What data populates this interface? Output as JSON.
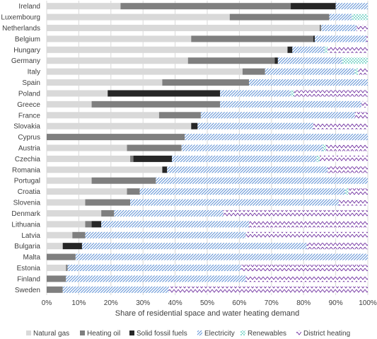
{
  "chart_data": {
    "type": "bar",
    "orientation": "horizontal",
    "stacked": true,
    "xlabel": "Share of residential space and water heating demand",
    "xlim": [
      0,
      100
    ],
    "x_ticks": [
      "0%",
      "10%",
      "20%",
      "30%",
      "40%",
      "50%",
      "60%",
      "70%",
      "80%",
      "90%",
      "100%"
    ],
    "grid": true,
    "legend_position": "bottom",
    "categories": [
      "Ireland",
      "Luxembourg",
      "Netherlands",
      "Belgium",
      "Hungary",
      "Germany",
      "Italy",
      "Spain",
      "Poland",
      "Greece",
      "France",
      "Slovakia",
      "Cyprus",
      "Austria",
      "Czechia",
      "Romania",
      "Portugal",
      "Croatia",
      "Slovenia",
      "Denmark",
      "Lithuania",
      "Latvia",
      "Bulgaria",
      "Malta",
      "Estonia",
      "Finland",
      "Sweden"
    ],
    "series": [
      {
        "name": "Natural gas",
        "color": "#d9d9d9",
        "pattern": "solid",
        "values": [
          23,
          57,
          85,
          45,
          75,
          44,
          61,
          36,
          19,
          14,
          35,
          45,
          0,
          25,
          26,
          36,
          14,
          25,
          12,
          17,
          12,
          8,
          5,
          0,
          6,
          0,
          0
        ]
      },
      {
        "name": "Heating oil",
        "color": "#7f7f7f",
        "pattern": "solid",
        "values": [
          53,
          31,
          0.5,
          38,
          0,
          27,
          7,
          27,
          0,
          40,
          13,
          0,
          43,
          17,
          1,
          0,
          20,
          4,
          14,
          4,
          2,
          4,
          0,
          9,
          0.5,
          6,
          5
        ]
      },
      {
        "name": "Solid fossil fuels",
        "color": "#262626",
        "pattern": "solid",
        "values": [
          14,
          0,
          0,
          0.5,
          1.5,
          1,
          0,
          0,
          35,
          0,
          0,
          2,
          0,
          0,
          12,
          1.5,
          0,
          0,
          0,
          0,
          3,
          0,
          6,
          0,
          0,
          0,
          0
        ]
      },
      {
        "name": "Electricity",
        "color": "#5b8fd4",
        "pattern": "diagonal",
        "values": [
          10,
          7,
          11,
          16,
          10,
          20,
          28,
          37,
          22,
          44,
          48,
          36,
          57,
          44,
          45,
          50,
          66,
          64,
          65,
          34,
          46,
          50,
          70,
          91,
          54,
          56,
          33
        ]
      },
      {
        "name": "Renewables",
        "color": "#3fbfaf",
        "pattern": "dots",
        "values": [
          0,
          5,
          0,
          0,
          1,
          8,
          1,
          0,
          1,
          0,
          0,
          0,
          0,
          1,
          1,
          0,
          0,
          1,
          0,
          0,
          0,
          0,
          0,
          0,
          0,
          0,
          0
        ]
      },
      {
        "name": "District heating",
        "color": "#7030a0",
        "pattern": "zigzag",
        "values": [
          0,
          0,
          3.5,
          0.5,
          12.5,
          0,
          3,
          0,
          23,
          2,
          4,
          17,
          0,
          13,
          15,
          12.5,
          0,
          6,
          9,
          45,
          37,
          38,
          19,
          0,
          39.5,
          38,
          62
        ]
      }
    ]
  }
}
